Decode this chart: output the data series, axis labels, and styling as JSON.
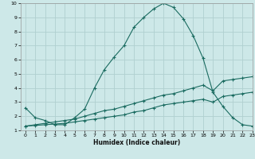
{
  "xlabel": "Humidex (Indice chaleur)",
  "background_color": "#cde8e8",
  "grid_color": "#b0d0d0",
  "line_color": "#1a6b60",
  "xlim": [
    -0.5,
    23
  ],
  "ylim": [
    1,
    10
  ],
  "xticks": [
    0,
    1,
    2,
    3,
    4,
    5,
    6,
    7,
    8,
    9,
    10,
    11,
    12,
    13,
    14,
    15,
    16,
    17,
    18,
    19,
    20,
    21,
    22,
    23
  ],
  "yticks": [
    1,
    2,
    3,
    4,
    5,
    6,
    7,
    8,
    9,
    10
  ],
  "line1_x": [
    0,
    1,
    2,
    3,
    4,
    5,
    6,
    7,
    8,
    9,
    10,
    11,
    12,
    13,
    14,
    15,
    16,
    17,
    18,
    19,
    20,
    21,
    22,
    23
  ],
  "line1_y": [
    2.6,
    1.9,
    1.7,
    1.4,
    1.4,
    1.9,
    2.5,
    4.0,
    5.3,
    6.2,
    7.0,
    8.3,
    9.0,
    9.6,
    10.0,
    9.7,
    8.9,
    7.7,
    6.1,
    3.7,
    2.7,
    1.9,
    1.4,
    1.3
  ],
  "line2_x": [
    0,
    1,
    2,
    3,
    4,
    5,
    6,
    7,
    8,
    9,
    10,
    11,
    12,
    13,
    14,
    15,
    16,
    17,
    18,
    19,
    20,
    21,
    22,
    23
  ],
  "line2_y": [
    1.3,
    1.4,
    1.5,
    1.6,
    1.7,
    1.8,
    2.0,
    2.2,
    2.4,
    2.5,
    2.7,
    2.9,
    3.1,
    3.3,
    3.5,
    3.6,
    3.8,
    4.0,
    4.2,
    3.8,
    4.5,
    4.6,
    4.7,
    4.8
  ],
  "line3_x": [
    0,
    1,
    2,
    3,
    4,
    5,
    6,
    7,
    8,
    9,
    10,
    11,
    12,
    13,
    14,
    15,
    16,
    17,
    18,
    19,
    20,
    21,
    22,
    23
  ],
  "line3_y": [
    1.3,
    1.35,
    1.4,
    1.45,
    1.5,
    1.6,
    1.7,
    1.8,
    1.9,
    2.0,
    2.1,
    2.3,
    2.4,
    2.6,
    2.8,
    2.9,
    3.0,
    3.1,
    3.2,
    3.0,
    3.4,
    3.5,
    3.6,
    3.7
  ]
}
